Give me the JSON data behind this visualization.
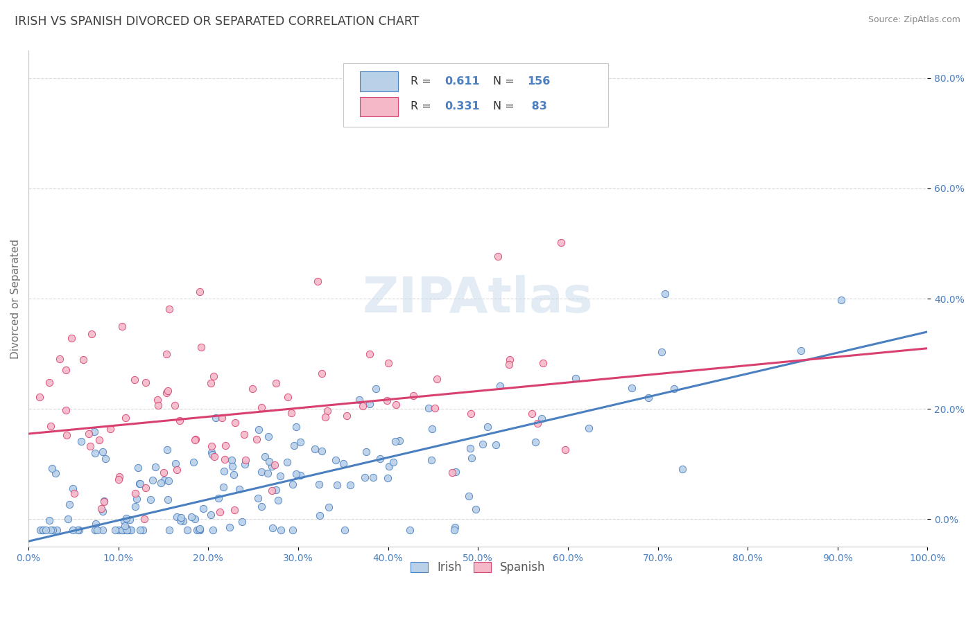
{
  "title": "IRISH VS SPANISH DIVORCED OR SEPARATED CORRELATION CHART",
  "source_text": "Source: ZipAtlas.com",
  "ylabel": "Divorced or Separated",
  "irish_R": 0.611,
  "irish_N": 156,
  "spanish_R": 0.331,
  "spanish_N": 83,
  "irish_color": "#b8d0e8",
  "spanish_color": "#f5b8c8",
  "irish_line_color": "#4a7fc0",
  "spanish_line_color": "#d84070",
  "title_color": "#404040",
  "axis_label_color": "#707070",
  "tick_color": "#4a7fc0",
  "watermark": "ZIPAtlas",
  "xlim": [
    0.0,
    1.0
  ],
  "ylim": [
    -0.05,
    0.85
  ],
  "irish_slope": 0.38,
  "irish_intercept": -0.04,
  "spanish_slope": 0.155,
  "spanish_intercept": 0.155,
  "background_color": "#ffffff",
  "grid_color": "#d8d8d8",
  "legend_R_color": "#4a7fc0",
  "legend_N_color": "#4a7fc0",
  "legend_label_color": "#333333"
}
